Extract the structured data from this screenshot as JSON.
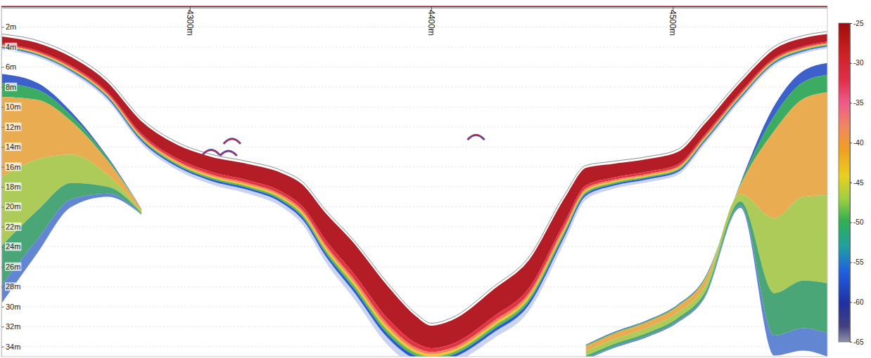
{
  "chart_data": {
    "type": "echogram",
    "x": [
      4222,
      4237,
      4251,
      4266,
      4280,
      4295,
      4309,
      4324,
      4338,
      4347,
      4356,
      4368,
      4382,
      4394,
      4400,
      4408,
      4426,
      4440,
      4455,
      4464,
      4475,
      4490,
      4502,
      4513,
      4528,
      4542,
      4554,
      4564
    ],
    "xlim": [
      4222,
      4564
    ],
    "xticks": [
      {
        "value": 4300,
        "label": "4300m"
      },
      {
        "value": 4400,
        "label": "4400m"
      },
      {
        "value": 4500,
        "label": "4500m"
      }
    ],
    "ylim": [
      0,
      35
    ],
    "yticks": [
      {
        "value": 2,
        "label": "2m"
      },
      {
        "value": 4,
        "label": "4m"
      },
      {
        "value": 6,
        "label": "6m"
      },
      {
        "value": 8,
        "label": "8m"
      },
      {
        "value": 10,
        "label": "10m"
      },
      {
        "value": 12,
        "label": "12m"
      },
      {
        "value": 14,
        "label": "14m"
      },
      {
        "value": 16,
        "label": "16m"
      },
      {
        "value": 18,
        "label": "18m"
      },
      {
        "value": 20,
        "label": "20m"
      },
      {
        "value": 22,
        "label": "22m"
      },
      {
        "value": 24,
        "label": "24m"
      },
      {
        "value": 26,
        "label": "26m"
      },
      {
        "value": 28,
        "label": "28m"
      },
      {
        "value": 30,
        "label": "30m"
      },
      {
        "value": 32,
        "label": "32m"
      },
      {
        "value": 34,
        "label": "34m"
      }
    ],
    "grid": true,
    "series": [
      {
        "type": "area",
        "values": [
          2.84,
          3.5,
          4.9,
          7.4,
          11.3,
          13.7,
          14.9,
          15.6,
          16.5,
          17.7,
          20.4,
          23.5,
          27.8,
          30.9,
          31.8,
          31.3,
          28.1,
          25.3,
          19.0,
          16.0,
          15.6,
          15.1,
          14.4,
          11.6,
          7.4,
          4.1,
          3.0,
          2.6
        ],
        "thickness": [
          1.3,
          1.4,
          1.6,
          1.8,
          2.2,
          2.4,
          2.6,
          2.8,
          3.2,
          3.8,
          4.6,
          5.2,
          5.5,
          4.5,
          3.8,
          4.0,
          4.6,
          4.8,
          4.2,
          3.0,
          2.4,
          2.2,
          2.2,
          2.0,
          1.8,
          1.6,
          1.5,
          1.4
        ]
      },
      {
        "type": "area",
        "values": [
          6.7,
          7.6,
          10.5,
          15.0,
          20.2,
          null,
          null,
          null,
          null,
          null,
          null,
          null,
          null,
          null,
          null,
          null,
          null,
          null,
          null,
          33.8,
          32.6,
          31.3,
          29.8,
          27.2,
          17.6,
          9.9,
          6.4,
          5.6
        ],
        "thickness": [
          23,
          17,
          9.5,
          4,
          0.6,
          null,
          null,
          null,
          null,
          null,
          null,
          null,
          null,
          null,
          null,
          null,
          null,
          null,
          null,
          1.5,
          1.6,
          1.7,
          1.8,
          2.0,
          2.5,
          25,
          28,
          29.4
        ]
      },
      {
        "type": "scatter",
        "marker": "arc",
        "x": [
          4308.8,
          4317.5,
          4316,
          4418.5
        ],
        "values": [
          14.3,
          13.2,
          14.4,
          12.8
        ]
      }
    ],
    "color_range": [
      -65,
      -25
    ],
    "color_ticks": [
      -25,
      -30,
      -35,
      -40,
      -45,
      -50,
      -55,
      -60,
      -65
    ]
  }
}
